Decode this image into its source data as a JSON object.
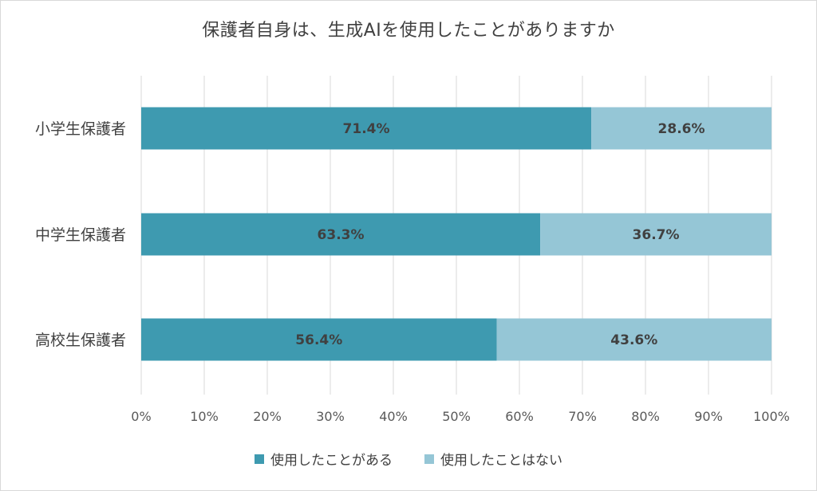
{
  "chart_data": {
    "type": "bar",
    "orientation": "horizontal",
    "stacked": true,
    "title": "保護者自身は、生成AIを使用したことがありますか",
    "categories": [
      "小学生保護者",
      "中学生保護者",
      "高校生保護者"
    ],
    "series": [
      {
        "name": "使用したことがある",
        "values": [
          71.4,
          63.3,
          56.4
        ],
        "labels": [
          "71.4%",
          "63.3%",
          "56.4%"
        ],
        "color": "#3e9ab0"
      },
      {
        "name": "使用したことはない",
        "values": [
          28.6,
          36.7,
          43.6
        ],
        "labels": [
          "28.6%",
          "36.7%",
          "43.6%"
        ],
        "color": "#95c6d6"
      }
    ],
    "xlim": [
      0,
      100
    ],
    "x_ticks": [
      "0%",
      "10%",
      "20%",
      "30%",
      "40%",
      "50%",
      "60%",
      "70%",
      "80%",
      "90%",
      "100%"
    ],
    "grid": "vertical",
    "legend_position": "bottom"
  }
}
